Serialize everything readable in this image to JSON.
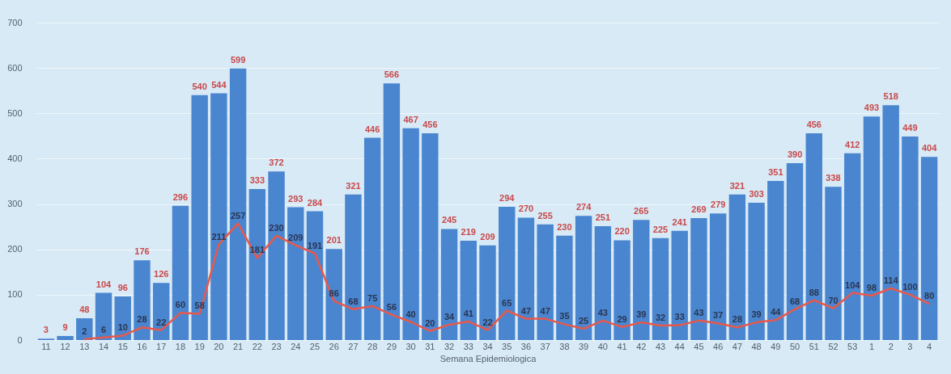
{
  "chart_data": {
    "type": "bar",
    "xlabel": "Semana Epidemiologica",
    "categories": [
      "11",
      "12",
      "13",
      "14",
      "15",
      "16",
      "17",
      "18",
      "19",
      "20",
      "21",
      "22",
      "23",
      "24",
      "25",
      "26",
      "27",
      "28",
      "29",
      "30",
      "31",
      "32",
      "33",
      "34",
      "35",
      "36",
      "37",
      "38",
      "39",
      "40",
      "41",
      "42",
      "43",
      "44",
      "45",
      "46",
      "47",
      "48",
      "49",
      "50",
      "51",
      "52",
      "53",
      "1",
      "2",
      "3",
      "4"
    ],
    "series": [
      {
        "color": "#4a86d0",
        "values": [
          3,
          9,
          48,
          104,
          96,
          176,
          126,
          296,
          540,
          544,
          599,
          333,
          372,
          293,
          284,
          201,
          321,
          446,
          566,
          467,
          456,
          245,
          219,
          209,
          294,
          270,
          255,
          230,
          274,
          251,
          220,
          265,
          225,
          241,
          269,
          279,
          321,
          303,
          351,
          390,
          456,
          338,
          412,
          493,
          518,
          449,
          404
        ]
      },
      {
        "type": "line",
        "color": "#e8584a",
        "values": [
          null,
          null,
          2,
          6,
          10,
          28,
          22,
          60,
          58,
          211,
          257,
          181,
          230,
          209,
          191,
          86,
          68,
          75,
          56,
          40,
          20,
          34,
          41,
          22,
          65,
          47,
          47,
          35,
          25,
          43,
          29,
          39,
          32,
          33,
          43,
          37,
          28,
          39,
          44,
          68,
          88,
          70,
          104,
          98,
          114,
          100,
          80
        ]
      }
    ],
    "ylim": [
      0,
      700
    ],
    "yticks": [
      0,
      100,
      200,
      300,
      400,
      500,
      600,
      700
    ],
    "grid": "y",
    "data_labels": true
  }
}
